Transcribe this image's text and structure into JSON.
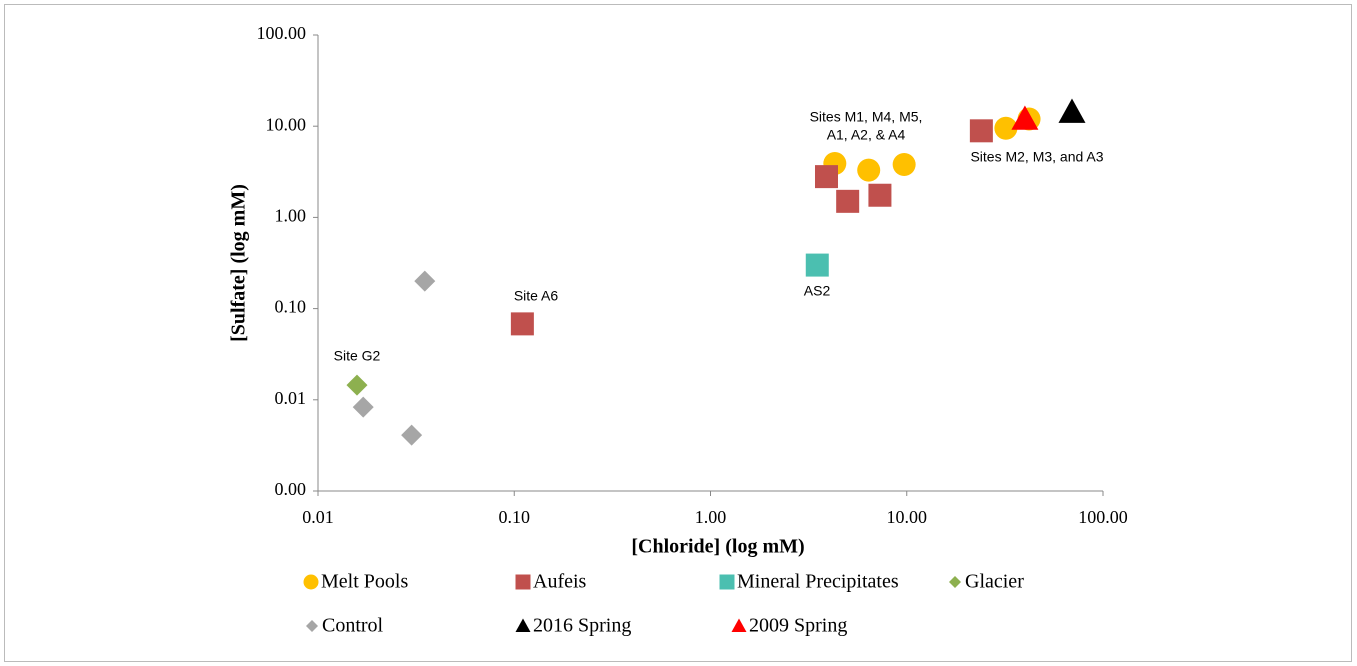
{
  "chart_data": {
    "type": "scatter",
    "x_label": "[Chloride] (log mM)",
    "y_label": "[Sulfate] (log mM)",
    "xscale": "log",
    "yscale": "log",
    "xlim": [
      0.01,
      100
    ],
    "xticks": [
      0.01,
      {
        "value": 0.1,
        "label": "0.10"
      },
      {
        "value": 1,
        "label": "1.00"
      },
      {
        "value": 10,
        "label": "10.00"
      },
      {
        "value": 100,
        "label": "100.00"
      }
    ],
    "ylim": [
      0.001,
      100
    ],
    "yticks": [
      {
        "value": 0.001,
        "label": "0.00"
      },
      0.01,
      {
        "value": 0.1,
        "label": "0.10"
      },
      {
        "value": 1,
        "label": "1.00"
      },
      {
        "value": 10,
        "label": "10.00"
      },
      {
        "value": 100,
        "label": "100.00"
      }
    ],
    "grid": false,
    "series": [
      {
        "name": "Melt Pools",
        "color": "#ffc000",
        "marker": "circle",
        "x": [
          4.3,
          6.4,
          9.7,
          32,
          42
        ],
        "values": [
          3.9,
          3.3,
          3.8,
          9.5,
          12
        ]
      },
      {
        "name": "Aufeis",
        "color": "#c0504d",
        "marker": "square",
        "x": [
          3.9,
          5.0,
          7.3,
          24,
          0.11
        ],
        "values": [
          2.8,
          1.5,
          1.75,
          8.9,
          0.068
        ]
      },
      {
        "name": "Mineral Precipitates",
        "color": "#4bbfb0",
        "marker": "square",
        "x": [
          3.5
        ],
        "values": [
          0.3
        ]
      },
      {
        "name": "Glacier",
        "color": "#8db04f",
        "marker": "diamond",
        "x": [
          0.0158
        ],
        "values": [
          0.0145
        ]
      },
      {
        "name": "Control",
        "color": "#a6a6a6",
        "marker": "diamond",
        "x": [
          0.035,
          0.017,
          0.03
        ],
        "values": [
          0.2,
          0.0083,
          0.0041
        ]
      },
      {
        "name": "2016 Spring",
        "color": "#000000",
        "marker": "triangle",
        "x": [
          69.5
        ],
        "values": [
          14.3
        ]
      },
      {
        "name": "2009 Spring",
        "color": "#ff0000",
        "marker": "triangle",
        "x": [
          40
        ],
        "values": [
          12
        ]
      }
    ],
    "annotations": [
      [
        "Sites M1, M4, M5,",
        "A1, A2, & A4"
      ],
      [
        "Sites M2, M3, and A3"
      ],
      [
        "AS2"
      ],
      [
        "Site A6"
      ],
      [
        "Site G2"
      ]
    ]
  }
}
